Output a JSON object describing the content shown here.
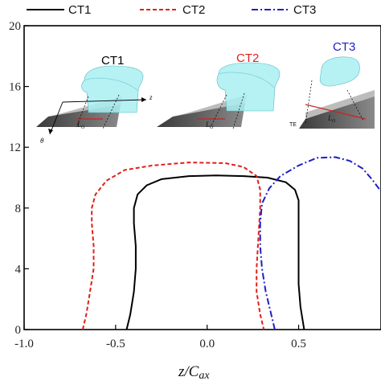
{
  "chart_data": {
    "type": "line",
    "xlabel": "z/C",
    "xlabel_sub": "ax",
    "ylabel": "",
    "xlim": [
      -1.0,
      0.95
    ],
    "ylim": [
      0,
      20
    ],
    "x_ticks": [
      -1.0,
      -0.5,
      0.0,
      0.5
    ],
    "x_tick_labels": [
      "-1.0",
      "-0.5",
      "0.0",
      "0.5"
    ],
    "y_ticks": [
      0,
      4,
      8,
      12,
      16,
      20
    ],
    "y_tick_labels": [
      "0",
      "4",
      "8",
      "12",
      "16",
      "20"
    ],
    "legend_position": "top",
    "series": [
      {
        "name": "CT1",
        "color": "#000000",
        "dash": "solid",
        "points": [
          [
            -0.44,
            0
          ],
          [
            -0.42,
            1
          ],
          [
            -0.4,
            2.5
          ],
          [
            -0.39,
            4
          ],
          [
            -0.39,
            5.5
          ],
          [
            -0.4,
            7
          ],
          [
            -0.4,
            8
          ],
          [
            -0.38,
            8.9
          ],
          [
            -0.33,
            9.5
          ],
          [
            -0.25,
            9.9
          ],
          [
            -0.1,
            10.1
          ],
          [
            0.05,
            10.15
          ],
          [
            0.2,
            10.1
          ],
          [
            0.33,
            10.0
          ],
          [
            0.43,
            9.7
          ],
          [
            0.48,
            9.2
          ],
          [
            0.5,
            8.5
          ],
          [
            0.5,
            7
          ],
          [
            0.5,
            5
          ],
          [
            0.5,
            3
          ],
          [
            0.51,
            1.5
          ],
          [
            0.53,
            0
          ]
        ]
      },
      {
        "name": "CT2",
        "color": "#e0201b",
        "dash": "dashed",
        "points": [
          [
            -0.68,
            0
          ],
          [
            -0.66,
            1
          ],
          [
            -0.64,
            2.5
          ],
          [
            -0.62,
            4
          ],
          [
            -0.62,
            5.5
          ],
          [
            -0.63,
            7
          ],
          [
            -0.63,
            8
          ],
          [
            -0.61,
            8.9
          ],
          [
            -0.55,
            9.8
          ],
          [
            -0.45,
            10.5
          ],
          [
            -0.3,
            10.8
          ],
          [
            -0.1,
            11.0
          ],
          [
            0.1,
            10.95
          ],
          [
            0.2,
            10.7
          ],
          [
            0.27,
            10.1
          ],
          [
            0.29,
            9.2
          ],
          [
            0.29,
            8
          ],
          [
            0.28,
            6
          ],
          [
            0.27,
            4
          ],
          [
            0.27,
            2.5
          ],
          [
            0.29,
            1
          ],
          [
            0.31,
            0
          ]
        ]
      },
      {
        "name": "CT3",
        "color": "#1f1fc8",
        "dash": "dashdot",
        "points": [
          [
            0.37,
            0
          ],
          [
            0.35,
            1
          ],
          [
            0.32,
            2.5
          ],
          [
            0.3,
            4
          ],
          [
            0.29,
            5.5
          ],
          [
            0.29,
            7
          ],
          [
            0.3,
            8.3
          ],
          [
            0.34,
            9.3
          ],
          [
            0.4,
            10.1
          ],
          [
            0.5,
            10.8
          ],
          [
            0.6,
            11.3
          ],
          [
            0.7,
            11.35
          ],
          [
            0.78,
            11.1
          ],
          [
            0.85,
            10.6
          ],
          [
            0.9,
            9.9
          ],
          [
            0.95,
            9.1
          ]
        ]
      }
    ],
    "insets": [
      {
        "label": "CT1",
        "label_color": "#000000",
        "annotations": [
          "z",
          "θ",
          "L",
          "O"
        ]
      },
      {
        "label": "CT2",
        "label_color": "#e0201b",
        "annotations": [
          "L",
          "O"
        ]
      },
      {
        "label": "CT3",
        "label_color": "#1f1fc8",
        "annotations": [
          "TE",
          "L",
          "O"
        ]
      }
    ],
    "title": ""
  }
}
